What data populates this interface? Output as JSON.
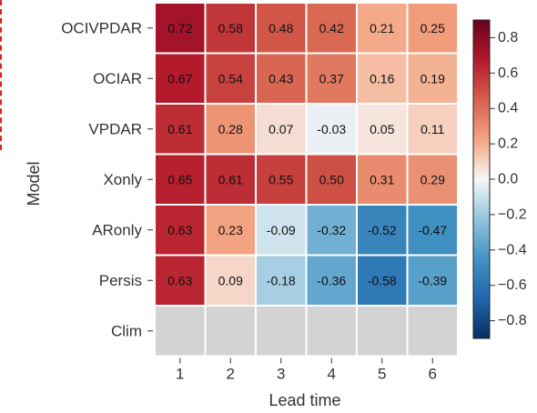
{
  "chart_data": {
    "type": "heatmap",
    "title": "",
    "xlabel": "Lead time",
    "ylabel": "Model",
    "x": [
      "1",
      "2",
      "3",
      "4",
      "5",
      "6"
    ],
    "y": [
      "OCIVPDAR",
      "OCIAR",
      "VPDAR",
      "Xonly",
      "ARonly",
      "Persis",
      "Clim"
    ],
    "values": [
      [
        0.72,
        0.58,
        0.48,
        0.42,
        0.21,
        0.25
      ],
      [
        0.67,
        0.54,
        0.43,
        0.37,
        0.16,
        0.19
      ],
      [
        0.61,
        0.28,
        0.07,
        -0.03,
        0.05,
        0.11
      ],
      [
        0.65,
        0.61,
        0.55,
        0.5,
        0.31,
        0.29
      ],
      [
        0.63,
        0.23,
        -0.09,
        -0.32,
        -0.52,
        -0.47
      ],
      [
        0.63,
        0.09,
        -0.18,
        -0.36,
        -0.58,
        -0.39
      ],
      [
        null,
        null,
        null,
        null,
        null,
        null
      ]
    ],
    "labels": [
      [
        "0.72",
        "0.58",
        "0.48",
        "0.42",
        "0.21",
        "0.25"
      ],
      [
        "0.67",
        "0.54",
        "0.43",
        "0.37",
        "0.16",
        "0.19"
      ],
      [
        "0.61",
        "0.28",
        "0.07",
        "-0.03",
        "0.05",
        "0.11"
      ],
      [
        "0.65",
        "0.61",
        "0.55",
        "0.50",
        "0.31",
        "0.29"
      ],
      [
        "0.63",
        "0.23",
        "-0.09",
        "-0.32",
        "-0.52",
        "-0.47"
      ],
      [
        "0.63",
        "0.09",
        "-0.18",
        "-0.36",
        "-0.58",
        "-0.39"
      ],
      [
        "",
        "",
        "",
        "",
        "",
        ""
      ]
    ],
    "missing_color": "#d3d3d3",
    "colormap": "RdBu_r",
    "vmin": -0.9,
    "vmax": 0.9,
    "colorbar_ticks": [
      0.8,
      0.6,
      0.4,
      0.2,
      0.0,
      -0.2,
      -0.4,
      -0.6,
      -0.8
    ],
    "colorbar_tick_labels": [
      "0.8",
      "0.6",
      "0.4",
      "0.2",
      "0.0",
      "−0.2",
      "−0.4",
      "−0.6",
      "−0.8"
    ],
    "grid": false,
    "legend": "colorbar-right"
  }
}
